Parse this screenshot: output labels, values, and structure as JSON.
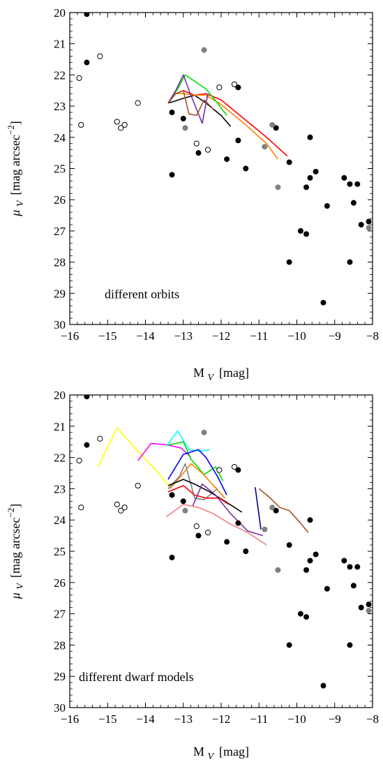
{
  "chart_data": [
    {
      "type": "scatter",
      "annotation": "different orbits",
      "xlabel": "M",
      "xlabel_sub": "V",
      "xlabel_unit": "[mag]",
      "ylabel": "μ",
      "ylabel_sub": "V",
      "ylabel_unit": "[mag arcsec",
      "ylabel_exp": "−2",
      "ylabel_close": "]",
      "xlim": [
        -16,
        -8
      ],
      "ylim": [
        30,
        20
      ],
      "xticks": [
        -16,
        -15,
        -14,
        -13,
        -12,
        -11,
        -10,
        -9,
        -8
      ],
      "xtick_labels": [
        "−16",
        "−15",
        "−14",
        "−13",
        "−12",
        "−11",
        "−10",
        "−9",
        "−8"
      ],
      "yticks": [
        20,
        21,
        22,
        23,
        24,
        25,
        26,
        27,
        28,
        29,
        30
      ],
      "ytick_labels": [
        "20",
        "21",
        "22",
        "23",
        "24",
        "25",
        "26",
        "27",
        "28",
        "29",
        "30"
      ],
      "points": {
        "filled_black": [
          [
            -15.55,
            20.05
          ],
          [
            -15.55,
            21.6
          ],
          [
            -13.3,
            23.2
          ],
          [
            -13.3,
            25.2
          ],
          [
            -13.0,
            23.4
          ],
          [
            -12.6,
            24.5
          ],
          [
            -11.85,
            24.7
          ],
          [
            -11.55,
            22.4
          ],
          [
            -11.55,
            24.1
          ],
          [
            -11.35,
            25.0
          ],
          [
            -10.55,
            23.7
          ],
          [
            -10.2,
            24.8
          ],
          [
            -10.2,
            28.0
          ],
          [
            -9.9,
            27.0
          ],
          [
            -9.75,
            27.1
          ],
          [
            -9.75,
            25.6
          ],
          [
            -9.65,
            25.3
          ],
          [
            -9.65,
            24.0
          ],
          [
            -9.5,
            25.1
          ],
          [
            -9.3,
            29.3
          ],
          [
            -9.2,
            26.2
          ],
          [
            -8.75,
            25.3
          ],
          [
            -8.6,
            25.5
          ],
          [
            -8.6,
            28.0
          ],
          [
            -8.5,
            26.1
          ],
          [
            -8.4,
            25.5
          ],
          [
            -8.3,
            26.8
          ],
          [
            -8.1,
            26.7
          ]
        ],
        "open": [
          [
            -15.75,
            22.1
          ],
          [
            -15.7,
            23.6
          ],
          [
            -15.2,
            21.4
          ],
          [
            -14.75,
            23.5
          ],
          [
            -14.65,
            23.7
          ],
          [
            -14.55,
            23.6
          ],
          [
            -14.2,
            22.9
          ],
          [
            -12.65,
            24.2
          ],
          [
            -12.35,
            24.4
          ],
          [
            -12.05,
            22.4
          ],
          [
            -11.65,
            22.3
          ]
        ],
        "gray": [
          [
            -12.95,
            23.7
          ],
          [
            -12.45,
            21.2
          ],
          [
            -10.85,
            24.3
          ],
          [
            -10.65,
            23.6
          ],
          [
            -10.5,
            25.6
          ],
          [
            -8.1,
            26.9
          ]
        ]
      },
      "series": [
        {
          "color": "#000000",
          "x": [
            -13.4,
            -13.25,
            -13.0,
            -12.7,
            -12.4,
            -12.0,
            -11.75
          ],
          "y": [
            22.9,
            22.85,
            22.75,
            22.65,
            22.9,
            23.3,
            23.65
          ]
        },
        {
          "color": "#ff0000",
          "x": [
            -13.4,
            -13.2,
            -13.0,
            -12.7,
            -12.4,
            -12.0,
            -11.5,
            -10.8,
            -10.25
          ],
          "y": [
            22.9,
            22.6,
            22.5,
            22.65,
            22.6,
            22.8,
            23.3,
            24.0,
            24.6
          ]
        },
        {
          "color": "#ff8000",
          "x": [
            -13.4,
            -13.2,
            -13.0,
            -12.7,
            -12.4,
            -12.0,
            -11.4,
            -10.8,
            -10.5
          ],
          "y": [
            22.9,
            22.6,
            22.6,
            22.65,
            22.65,
            22.95,
            23.55,
            24.2,
            24.7
          ]
        },
        {
          "color": "#00dd00",
          "x": [
            -13.4,
            -13.15,
            -12.95,
            -12.7,
            -12.4,
            -12.1,
            -11.85
          ],
          "y": [
            22.9,
            22.45,
            22.0,
            22.2,
            22.45,
            22.9,
            23.3
          ]
        },
        {
          "color": "#7030a0",
          "x": [
            -13.4,
            -13.2,
            -13.0,
            -12.8,
            -12.5,
            -12.35
          ],
          "y": [
            22.9,
            22.5,
            22.0,
            22.65,
            23.55,
            22.6
          ]
        },
        {
          "color": "#a0522d",
          "x": [
            -13.4,
            -13.2,
            -13.0,
            -12.85,
            -12.65,
            -12.45,
            -12.2
          ],
          "y": [
            22.9,
            22.6,
            22.5,
            23.25,
            23.3,
            22.8,
            23.1
          ]
        }
      ]
    },
    {
      "type": "scatter",
      "annotation": "different dwarf models",
      "xlabel": "M",
      "xlabel_sub": "V",
      "xlabel_unit": "[mag]",
      "ylabel": "μ",
      "ylabel_sub": "V",
      "ylabel_unit": "[mag arcsec",
      "ylabel_exp": "−2",
      "ylabel_close": "]",
      "xlim": [
        -16,
        -8
      ],
      "ylim": [
        30,
        20
      ],
      "xticks": [
        -16,
        -15,
        -14,
        -13,
        -12,
        -11,
        -10,
        -9,
        -8
      ],
      "xtick_labels": [
        "−16",
        "−15",
        "−14",
        "−13",
        "−12",
        "−11",
        "−10",
        "−9",
        "−8"
      ],
      "yticks": [
        20,
        21,
        22,
        23,
        24,
        25,
        26,
        27,
        28,
        29,
        30
      ],
      "ytick_labels": [
        "20",
        "21",
        "22",
        "23",
        "24",
        "25",
        "26",
        "27",
        "28",
        "29",
        "30"
      ],
      "points": {
        "filled_black": [
          [
            -15.55,
            20.05
          ],
          [
            -15.55,
            21.6
          ],
          [
            -13.3,
            23.2
          ],
          [
            -13.3,
            25.2
          ],
          [
            -13.0,
            23.4
          ],
          [
            -12.6,
            24.5
          ],
          [
            -11.85,
            24.7
          ],
          [
            -11.55,
            22.4
          ],
          [
            -11.55,
            24.1
          ],
          [
            -11.35,
            25.0
          ],
          [
            -10.55,
            23.7
          ],
          [
            -10.2,
            24.8
          ],
          [
            -10.2,
            28.0
          ],
          [
            -9.9,
            27.0
          ],
          [
            -9.75,
            27.1
          ],
          [
            -9.75,
            25.6
          ],
          [
            -9.65,
            25.3
          ],
          [
            -9.65,
            24.0
          ],
          [
            -9.5,
            25.1
          ],
          [
            -9.3,
            29.3
          ],
          [
            -9.2,
            26.2
          ],
          [
            -8.75,
            25.3
          ],
          [
            -8.6,
            25.5
          ],
          [
            -8.6,
            28.0
          ],
          [
            -8.5,
            26.1
          ],
          [
            -8.4,
            25.5
          ],
          [
            -8.3,
            26.8
          ],
          [
            -8.1,
            26.7
          ]
        ],
        "open": [
          [
            -15.75,
            22.1
          ],
          [
            -15.7,
            23.6
          ],
          [
            -15.2,
            21.4
          ],
          [
            -14.75,
            23.5
          ],
          [
            -14.65,
            23.7
          ],
          [
            -14.55,
            23.6
          ],
          [
            -14.2,
            22.9
          ],
          [
            -12.65,
            24.2
          ],
          [
            -12.35,
            24.4
          ],
          [
            -12.05,
            22.4
          ],
          [
            -11.65,
            22.3
          ]
        ],
        "gray": [
          [
            -12.95,
            23.7
          ],
          [
            -12.45,
            21.2
          ],
          [
            -10.85,
            24.3
          ],
          [
            -10.65,
            23.6
          ],
          [
            -10.5,
            25.6
          ],
          [
            -8.1,
            26.9
          ]
        ]
      },
      "series": [
        {
          "color": "#ffff00",
          "x": [
            -15.25,
            -14.75,
            -14.2,
            -13.65,
            -13.4
          ],
          "y": [
            22.3,
            21.05,
            21.8,
            22.5,
            22.9
          ]
        },
        {
          "color": "#ff00ff",
          "x": [
            -14.2,
            -13.85,
            -13.4,
            -13.05,
            -12.8
          ],
          "y": [
            22.1,
            21.55,
            21.6,
            21.7,
            22.0
          ]
        },
        {
          "color": "#00ffff",
          "x": [
            -13.45,
            -13.15,
            -12.85,
            -12.55,
            -12.3
          ],
          "y": [
            21.65,
            21.15,
            21.75,
            21.8,
            21.75
          ]
        },
        {
          "color": "#00dd00",
          "x": [
            -13.4,
            -13.0,
            -12.8,
            -12.45,
            -12.15,
            -11.95
          ],
          "y": [
            21.6,
            21.5,
            22.05,
            22.55,
            22.3,
            22.75
          ]
        },
        {
          "color": "#0000ff",
          "x": [
            -13.4,
            -13.0,
            -12.6,
            -12.4,
            -12.1,
            -11.85
          ],
          "y": [
            22.7,
            21.9,
            21.75,
            22.0,
            22.6,
            23.2
          ]
        },
        {
          "color": "#ff8000",
          "x": [
            -13.35,
            -13.0,
            -12.8,
            -12.5,
            -12.2,
            -11.9
          ],
          "y": [
            23.0,
            22.5,
            22.2,
            22.5,
            22.9,
            23.3
          ]
        },
        {
          "color": "#808080",
          "x": [
            -13.4,
            -13.1,
            -12.95,
            -12.7,
            -12.45,
            -12.1
          ],
          "y": [
            23.0,
            22.6,
            22.2,
            23.3,
            23.35,
            23.0
          ]
        },
        {
          "color": "#000000",
          "x": [
            -13.4,
            -13.0,
            -12.7,
            -12.3,
            -11.9,
            -11.45
          ],
          "y": [
            22.9,
            22.7,
            22.85,
            23.1,
            23.4,
            23.75
          ]
        },
        {
          "color": "#ff0000",
          "x": [
            -13.4,
            -13.0,
            -12.7,
            -12.4,
            -12.05,
            -11.8
          ],
          "y": [
            23.1,
            22.9,
            23.2,
            23.3,
            23.3,
            23.5
          ]
        },
        {
          "color": "#7030a0",
          "x": [
            -12.75,
            -12.5,
            -12.15,
            -11.75,
            -11.3,
            -10.9
          ],
          "y": [
            23.55,
            22.85,
            23.2,
            23.8,
            24.35,
            24.5
          ]
        },
        {
          "color": "#a0522d",
          "x": [
            -11.0,
            -10.7,
            -10.45,
            -10.2,
            -9.9,
            -9.7
          ],
          "y": [
            23.0,
            23.3,
            23.6,
            23.7,
            24.1,
            24.4
          ]
        },
        {
          "color": "#f08080",
          "x": [
            -13.45,
            -13.0,
            -12.6,
            -12.2,
            -11.8,
            -11.3,
            -10.8
          ],
          "y": [
            23.9,
            23.5,
            23.6,
            23.8,
            24.1,
            24.4,
            24.8
          ]
        },
        {
          "color": "#00008b",
          "x": [
            -11.1,
            -10.95
          ],
          "y": [
            22.95,
            24.3
          ]
        }
      ]
    }
  ]
}
